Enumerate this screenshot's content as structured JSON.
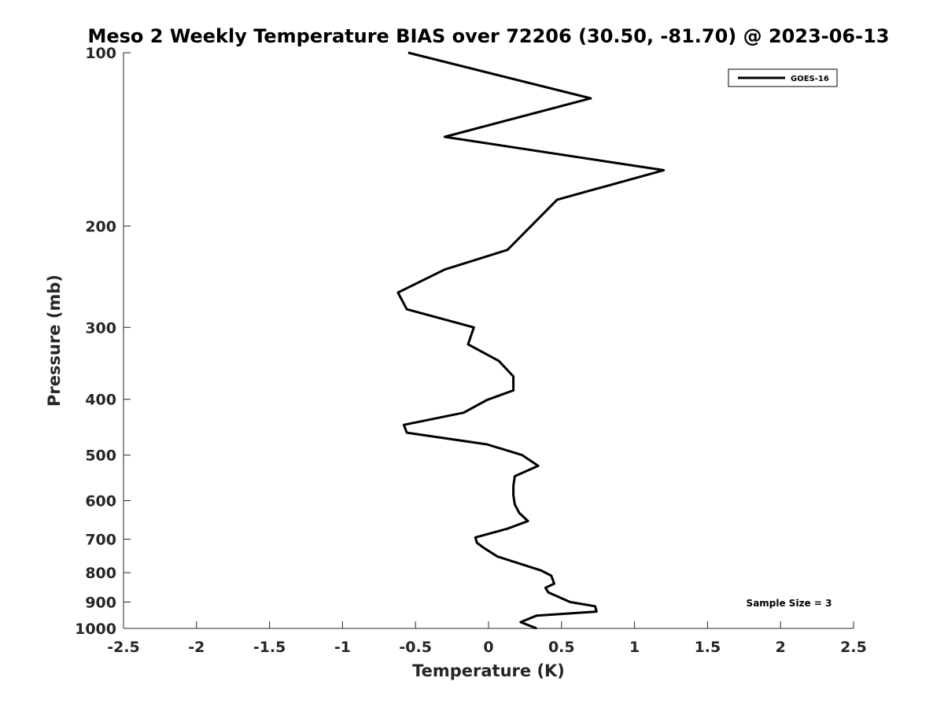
{
  "chart_data": {
    "type": "line",
    "title": "Meso 2 Weekly Temperature BIAS over 72206 (30.50, -81.70) @ 2023-06-13",
    "xlabel": "Temperature (K)",
    "ylabel": "Pressure (mb)",
    "xlim": [
      -2.5,
      2.5
    ],
    "ylim": [
      100,
      1000
    ],
    "y_scale": "log",
    "y_reversed": true,
    "x_ticks": [
      "-2.5",
      "-2",
      "-1.5",
      "-1",
      "-0.5",
      "0",
      "0.5",
      "1",
      "1.5",
      "2",
      "2.5"
    ],
    "x_tick_values": [
      -2.5,
      -2,
      -1.5,
      -1,
      -0.5,
      0,
      0.5,
      1,
      1.5,
      2,
      2.5
    ],
    "y_ticks": [
      "100",
      "200",
      "300",
      "400",
      "500",
      "600",
      "700",
      "800",
      "900",
      "1000"
    ],
    "y_tick_values": [
      100,
      200,
      300,
      400,
      500,
      600,
      700,
      800,
      900,
      1000
    ],
    "grid": false,
    "legend_position": "top-right",
    "annotation": "Sample Size = 3",
    "series": [
      {
        "name": "GOES-16",
        "color": "#000000",
        "points": [
          {
            "x": -0.55,
            "p": 100
          },
          {
            "x": 0.7,
            "p": 120
          },
          {
            "x": -0.3,
            "p": 140
          },
          {
            "x": 1.2,
            "p": 160
          },
          {
            "x": 0.47,
            "p": 180
          },
          {
            "x": 0.13,
            "p": 220
          },
          {
            "x": -0.3,
            "p": 238
          },
          {
            "x": -0.62,
            "p": 261
          },
          {
            "x": -0.56,
            "p": 279
          },
          {
            "x": -0.1,
            "p": 300
          },
          {
            "x": -0.14,
            "p": 321
          },
          {
            "x": 0.07,
            "p": 343
          },
          {
            "x": 0.17,
            "p": 365
          },
          {
            "x": 0.17,
            "p": 386
          },
          {
            "x": -0.01,
            "p": 401
          },
          {
            "x": -0.17,
            "p": 422
          },
          {
            "x": -0.58,
            "p": 443
          },
          {
            "x": -0.56,
            "p": 457
          },
          {
            "x": -0.01,
            "p": 479
          },
          {
            "x": 0.23,
            "p": 500
          },
          {
            "x": 0.34,
            "p": 522
          },
          {
            "x": 0.18,
            "p": 544
          },
          {
            "x": 0.17,
            "p": 566
          },
          {
            "x": 0.17,
            "p": 587
          },
          {
            "x": 0.18,
            "p": 609
          },
          {
            "x": 0.21,
            "p": 630
          },
          {
            "x": 0.27,
            "p": 651
          },
          {
            "x": 0.13,
            "p": 671
          },
          {
            "x": -0.09,
            "p": 695
          },
          {
            "x": -0.08,
            "p": 710
          },
          {
            "x": -0.03,
            "p": 725
          },
          {
            "x": 0.06,
            "p": 750
          },
          {
            "x": 0.36,
            "p": 793
          },
          {
            "x": 0.43,
            "p": 810
          },
          {
            "x": 0.45,
            "p": 836
          },
          {
            "x": 0.39,
            "p": 850
          },
          {
            "x": 0.41,
            "p": 866
          },
          {
            "x": 0.56,
            "p": 900
          },
          {
            "x": 0.73,
            "p": 915
          },
          {
            "x": 0.74,
            "p": 935
          },
          {
            "x": 0.33,
            "p": 950
          },
          {
            "x": 0.22,
            "p": 975
          },
          {
            "x": 0.33,
            "p": 1000
          }
        ]
      }
    ]
  }
}
